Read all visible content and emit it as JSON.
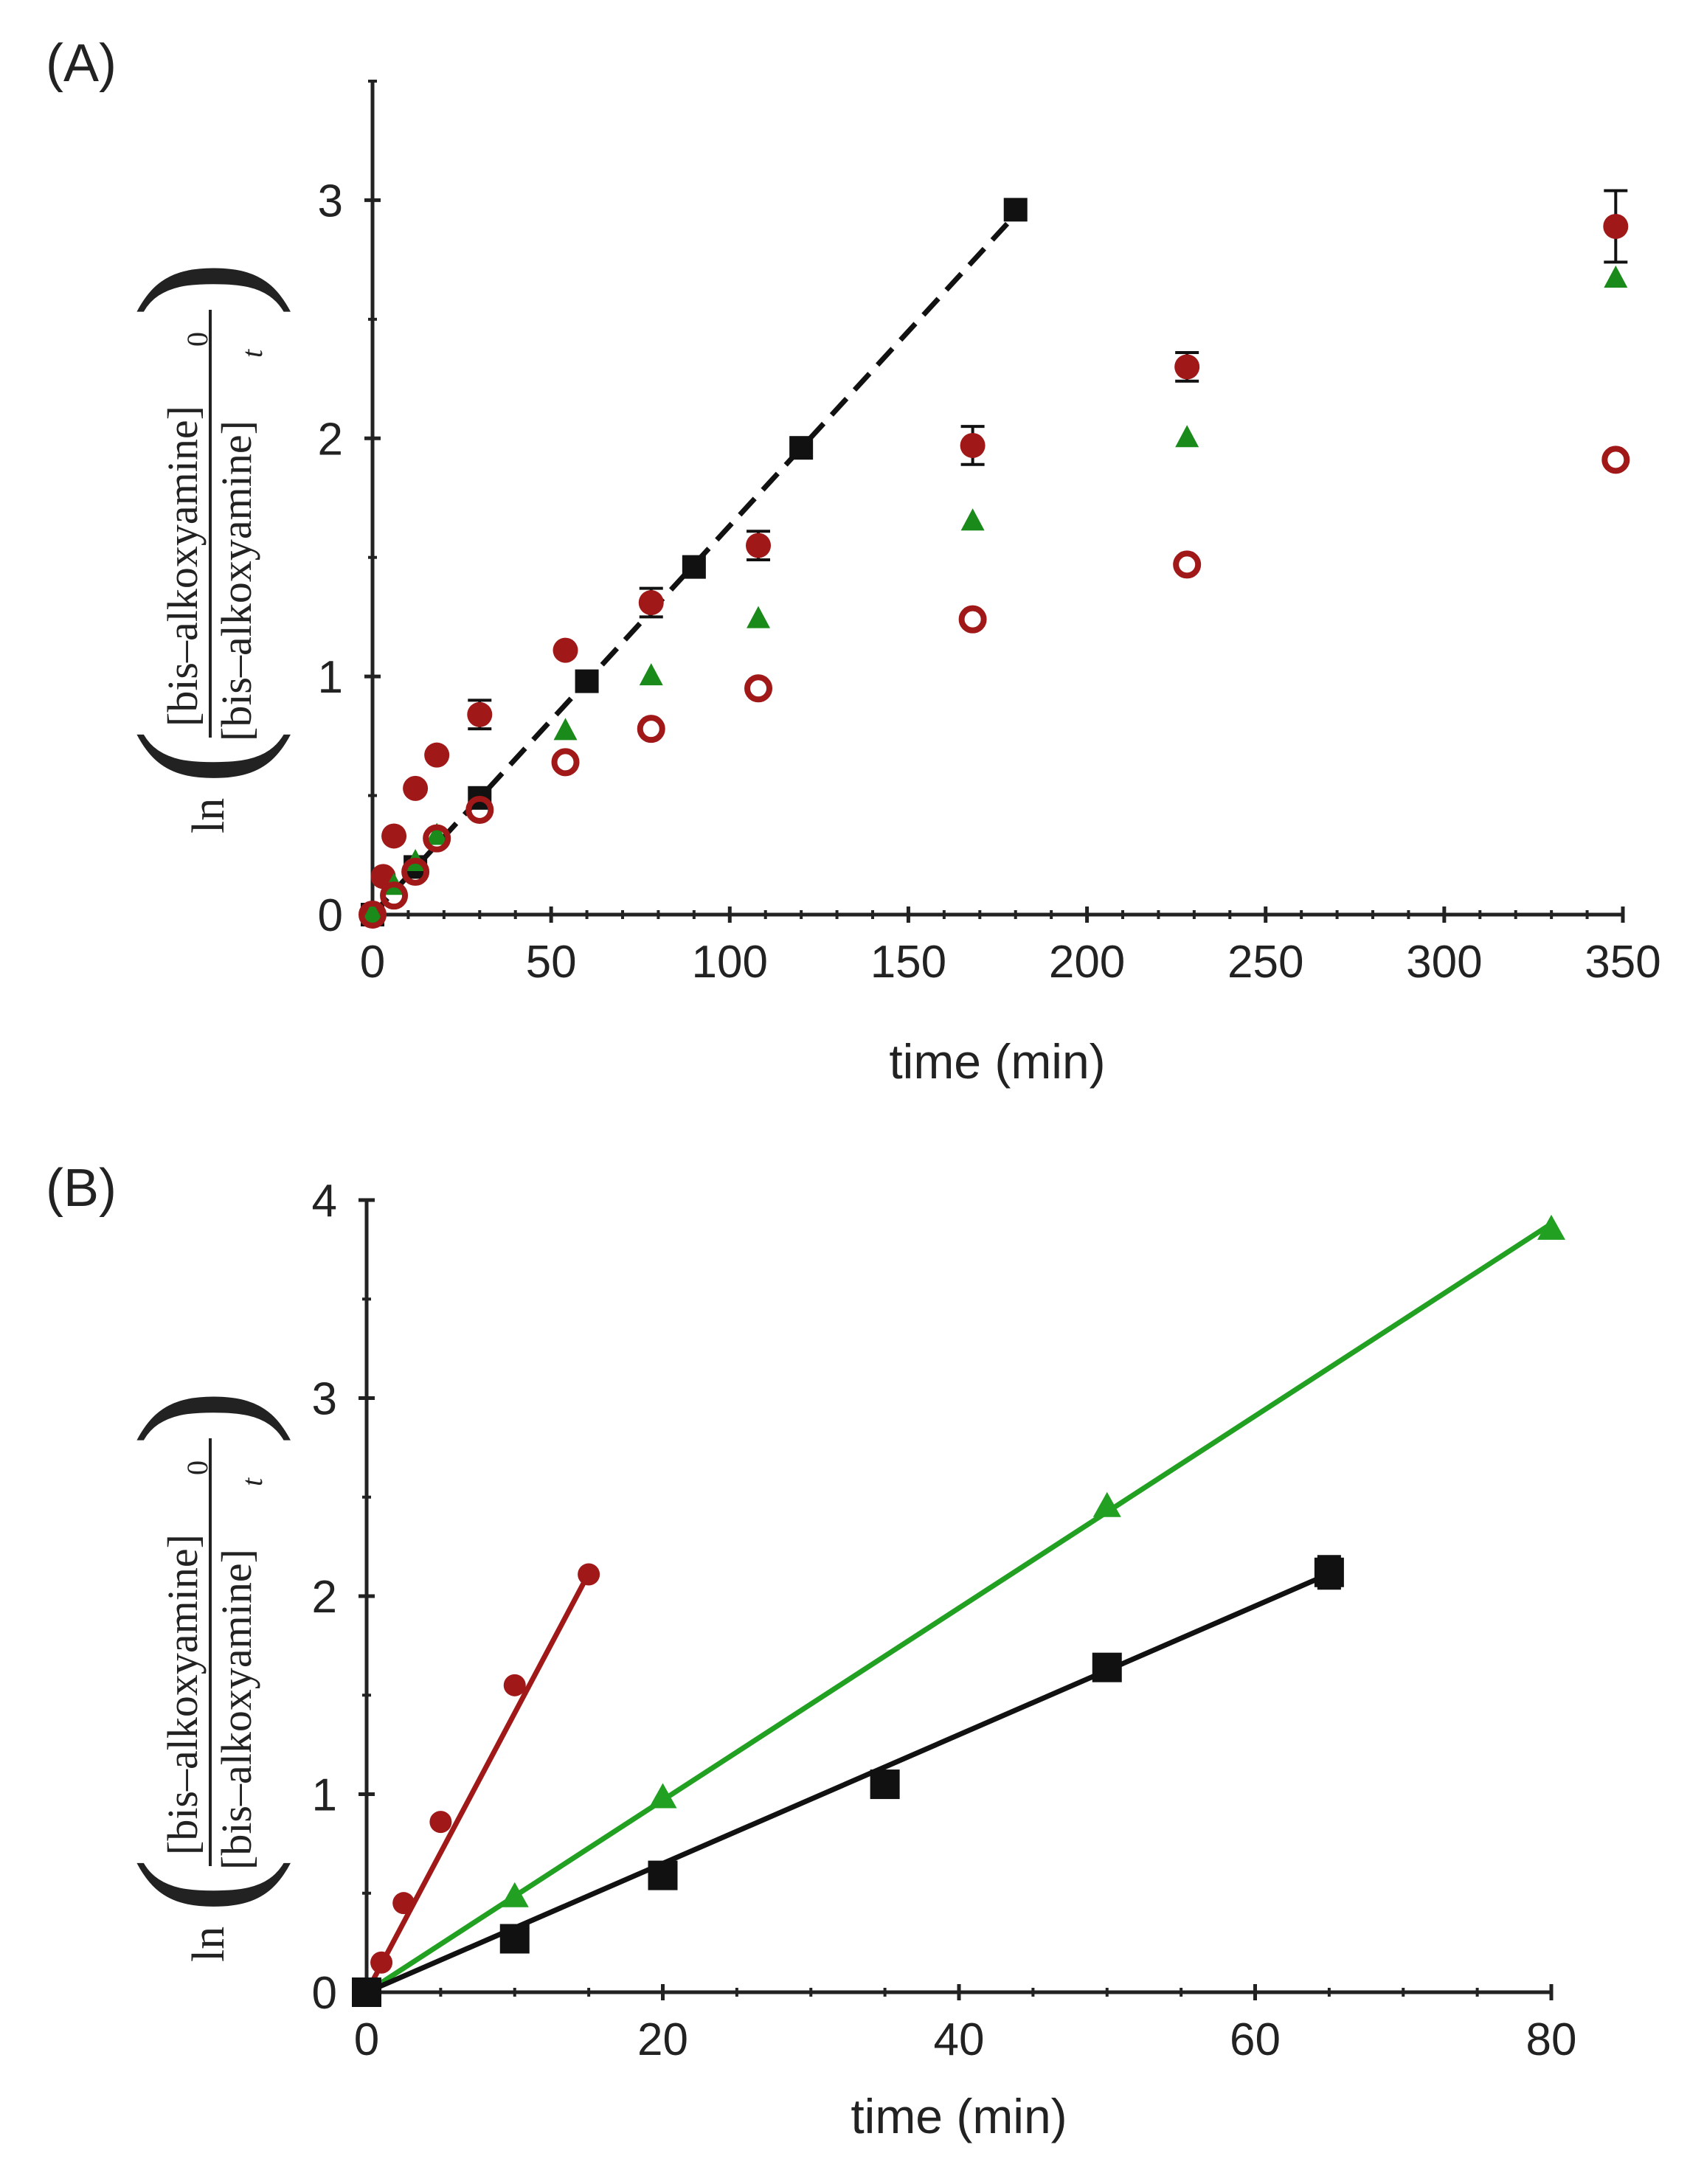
{
  "colors": {
    "black": "#111111",
    "dark_red": "#a01818",
    "green": "#1a8a1a",
    "line_red": "#a01818",
    "line_green": "#22a022"
  },
  "chart_data": [
    {
      "panel_label": "(A)",
      "type": "scatter",
      "xlabel": "time (min)",
      "ylabel": {
        "prefix": "ln",
        "numerator": "[bis–alkoxyamine]",
        "numerator_sub": "0",
        "denominator": "[bis–alkoxyamine]",
        "denominator_sub": "t"
      },
      "xlim": [
        0,
        350
      ],
      "ylim": [
        0,
        3.5
      ],
      "x_ticks": [
        0,
        50,
        100,
        150,
        200,
        250,
        300,
        350
      ],
      "y_ticks": [
        0,
        1,
        2,
        3
      ],
      "x_tick_labels": [
        "0",
        "50",
        "100",
        "150",
        "200",
        "250",
        "300",
        "350"
      ],
      "y_tick_labels": [
        "0",
        "1",
        "2",
        "3"
      ],
      "series": [
        {
          "marker": "square",
          "color_key": "black",
          "points": [
            [
              0,
              0.0
            ],
            [
              12,
              0.2
            ],
            [
              30,
              0.49
            ],
            [
              60,
              0.98
            ],
            [
              90,
              1.46
            ],
            [
              120,
              1.96
            ],
            [
              180,
              2.96
            ]
          ],
          "fit": {
            "style": "dashed",
            "x_range": [
              0,
              180
            ],
            "slope": 0.01633,
            "intercept": 0.0
          }
        },
        {
          "marker": "filled-circle",
          "color_key": "dark_red",
          "points": [
            [
              0,
              0.0
            ],
            [
              3,
              0.16
            ],
            [
              6,
              0.33
            ],
            [
              12,
              0.53
            ],
            [
              18,
              0.67
            ],
            [
              30,
              0.84
            ],
            [
              54,
              1.11
            ],
            [
              78,
              1.31
            ],
            [
              108,
              1.55
            ],
            [
              168,
              1.97
            ],
            [
              228,
              2.3
            ],
            [
              348,
              2.89
            ]
          ],
          "errors": [
            0,
            0,
            0,
            0,
            0,
            0.06,
            0,
            0.06,
            0.06,
            0.08,
            0.06,
            0.15
          ]
        },
        {
          "marker": "triangle",
          "color_key": "green",
          "points": [
            [
              0,
              0.0
            ],
            [
              6,
              0.12
            ],
            [
              12,
              0.22
            ],
            [
              18,
              0.33
            ],
            [
              54,
              0.77
            ],
            [
              78,
              1.0
            ],
            [
              108,
              1.24
            ],
            [
              168,
              1.65
            ],
            [
              228,
              2.0
            ],
            [
              348,
              2.67
            ]
          ]
        },
        {
          "marker": "open-circle",
          "color_key": "dark_red",
          "points": [
            [
              0,
              0.0
            ],
            [
              6,
              0.08
            ],
            [
              12,
              0.18
            ],
            [
              18,
              0.32
            ],
            [
              30,
              0.44
            ],
            [
              54,
              0.64
            ],
            [
              78,
              0.78
            ],
            [
              108,
              0.95
            ],
            [
              168,
              1.24
            ],
            [
              228,
              1.47
            ],
            [
              348,
              1.91
            ]
          ]
        }
      ]
    },
    {
      "panel_label": "(B)",
      "type": "scatter",
      "xlabel": "time (min)",
      "ylabel": {
        "prefix": "ln",
        "numerator": "[bis–alkoxyamine]",
        "numerator_sub": "0",
        "denominator": "[bis–alkoxyamine]",
        "denominator_sub": "t"
      },
      "xlim": [
        0,
        80
      ],
      "ylim": [
        0,
        4
      ],
      "x_ticks": [
        0,
        20,
        40,
        60,
        80
      ],
      "y_ticks": [
        0,
        1,
        2,
        3,
        4
      ],
      "x_tick_labels": [
        "0",
        "20",
        "40",
        "60",
        "80"
      ],
      "y_tick_labels": [
        "0",
        "1",
        "2",
        "3",
        "4"
      ],
      "series": [
        {
          "marker": "filled-circle",
          "color_key": "dark_red",
          "points": [
            [
              0,
              0.0
            ],
            [
              1,
              0.15
            ],
            [
              2.5,
              0.45
            ],
            [
              5,
              0.86
            ],
            [
              10,
              1.55
            ],
            [
              15,
              2.11
            ]
          ],
          "fit": {
            "style": "solid",
            "line_color_key": "line_red",
            "x_range": [
              0,
              15
            ],
            "slope": 0.141,
            "intercept": 0.0
          }
        },
        {
          "marker": "triangle",
          "color_key": "line_green",
          "points": [
            [
              0,
              0.0
            ],
            [
              10,
              0.48
            ],
            [
              20,
              0.98
            ],
            [
              50,
              2.45
            ],
            [
              80,
              3.85
            ]
          ],
          "fit": {
            "style": "solid",
            "line_color_key": "line_green",
            "x_range": [
              0,
              80
            ],
            "slope": 0.0485,
            "intercept": 0.0
          }
        },
        {
          "marker": "square",
          "color_key": "black",
          "points": [
            [
              0,
              0.0
            ],
            [
              10,
              0.27
            ],
            [
              20,
              0.59
            ],
            [
              35,
              1.05
            ],
            [
              50,
              1.64
            ],
            [
              65,
              2.12
            ]
          ],
          "errors": [
            0,
            0,
            0,
            0,
            0,
            0.08
          ],
          "fit": {
            "style": "solid",
            "line_color_key": "black",
            "x_range": [
              0,
              65
            ],
            "slope": 0.0325,
            "intercept": 0.0
          }
        }
      ]
    }
  ]
}
